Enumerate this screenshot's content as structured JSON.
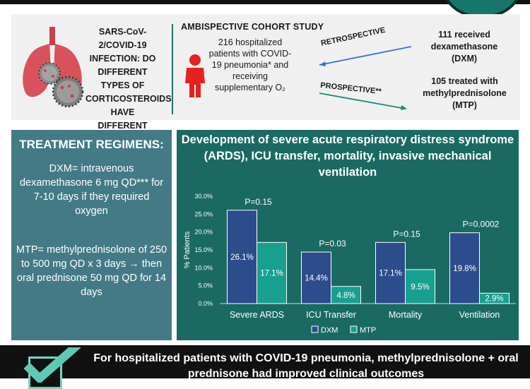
{
  "top": {
    "question": "SARS-CoV-2/COVID-19 INFECTION: DO DIFFERENT TYPES OF CORTICOSTEROIDS HAVE DIFFERENT EFFICACY ?",
    "study": "AMBISPECTIVE COHORT STUDY",
    "patients": "216 hospitalized patients with COVID-19 pneumonia* and receiving supplementary O₂",
    "retro": "RETROSPECTIVE",
    "prosp": "PROSPECTIVE**",
    "dxm_group": "111 received dexamethasone (DXM)",
    "mtp_group": "105 treated with methylprednisolone (MTP)"
  },
  "regimens": {
    "title": "TREATMENT REGIMENS:",
    "dxm": "DXM= intravenous dexamethasone 6 mg QD*** for 7-10 days if they required oxygen",
    "mtp": "MTP= methylprednisolone of 250 to 500 mg QD x 3 days → then oral prednisone 50 mg QD for 14 days"
  },
  "chart_title": "Development of severe acute respiratory distress syndrome (ARDS), ICU transfer, mortality, invasive mechanical ventilation",
  "chart_data": {
    "type": "bar",
    "title": "Development of severe acute respiratory distress syndrome (ARDS), ICU transfer, mortality, invasive mechanical ventilation",
    "categories": [
      "Severe ARDS",
      "ICU Transfer",
      "Mortality",
      "Ventilation"
    ],
    "series": [
      {
        "name": "DXM",
        "values": [
          26.1,
          14.4,
          17.1,
          19.8
        ],
        "labels": [
          "26.1%",
          "14.4%",
          "17.1%",
          "19.8%"
        ],
        "color": "#2d4c8c"
      },
      {
        "name": "MTP",
        "values": [
          17.1,
          4.8,
          9.5,
          2.9
        ],
        "labels": [
          "17.1%",
          "4.8%",
          "9.5%",
          "2.9%"
        ],
        "color": "#17a08f"
      }
    ],
    "p_values": [
      "P=0.15",
      "P=0.03",
      "P=0.15",
      "P=0.0002"
    ],
    "ylabel": "% Patients",
    "xlabel": "",
    "ylim": [
      0,
      30
    ],
    "yticks": [
      "0.0%",
      "5.0%",
      "10.0%",
      "15.0%",
      "20.0%",
      "25.0%",
      "30.0%"
    ],
    "grid": false,
    "legend": "bottom"
  },
  "conclusion": "For hospitalized patients with COVID-19 pneumonia, methylprednisolone + oral prednisone had improved clinical outcomes",
  "colors": {
    "teal_dark": "#1a6a63",
    "slate": "#437a85",
    "dxm": "#2d4c8c",
    "mtp": "#17a08f"
  },
  "icons": [
    "lungs-virus-icon",
    "person-icon",
    "checkmark-icon"
  ]
}
